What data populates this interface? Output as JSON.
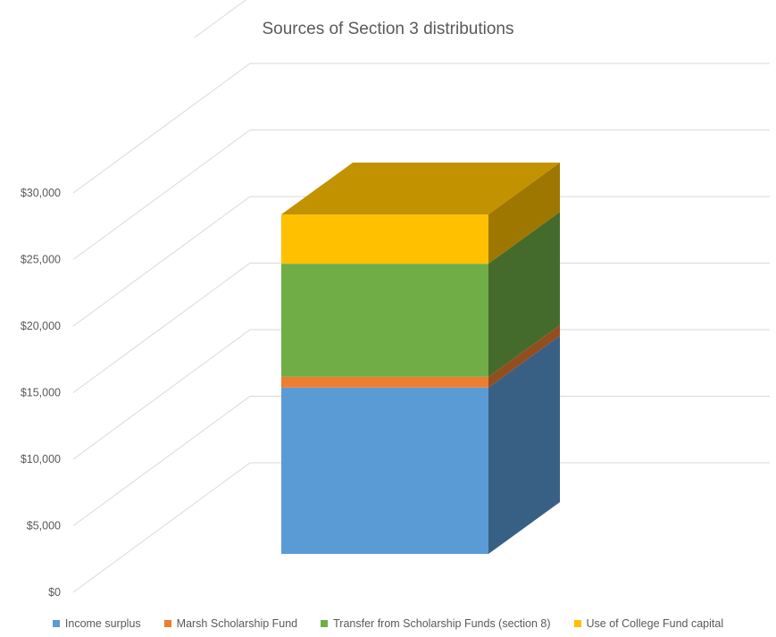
{
  "chart_data": {
    "type": "bar",
    "variant": "3d-stacked-column",
    "title": "Sources of Section 3 distributions",
    "xlabel": "",
    "ylabel": "",
    "ylim": [
      0,
      35000
    ],
    "yticks": [
      "$0",
      "$5,000",
      "$10,000",
      "$15,000",
      "$20,000",
      "$25,000",
      "$30,000"
    ],
    "ytick_values": [
      0,
      5000,
      10000,
      15000,
      20000,
      25000,
      30000
    ],
    "grid": true,
    "legend_position": "bottom",
    "categories": [
      ""
    ],
    "series": [
      {
        "name": "Income surplus",
        "values": [
          12500
        ],
        "color": "#5B9BD5"
      },
      {
        "name": "Marsh Scholarship Fund",
        "values": [
          800
        ],
        "color": "#ED7D31"
      },
      {
        "name": "Transfer from Scholarship Funds (section 8)",
        "values": [
          8500
        ],
        "color": "#70AD47"
      },
      {
        "name": "Use of College Fund capital",
        "values": [
          3700
        ],
        "color": "#FFC000"
      }
    ]
  }
}
